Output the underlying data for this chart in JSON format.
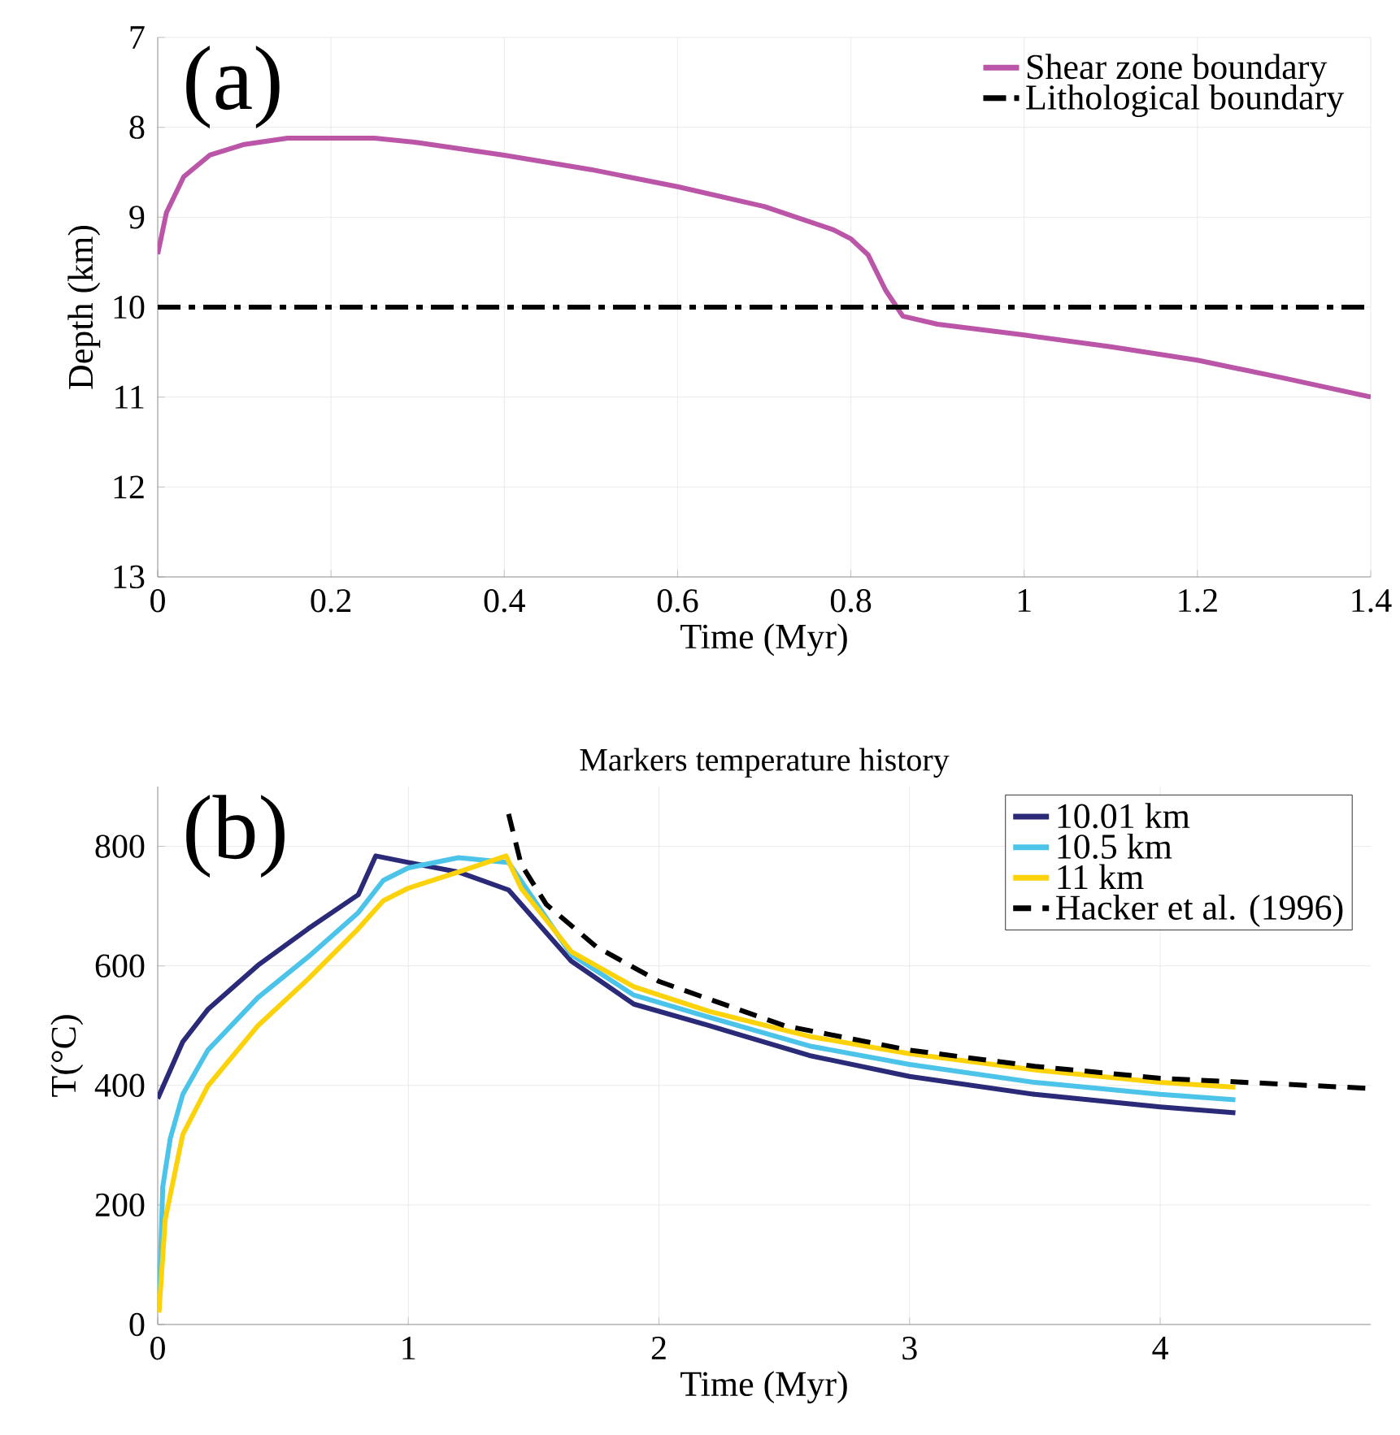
{
  "chart_data": [
    {
      "type": "line",
      "xlabel": "Time (Myr)",
      "ylabel": "Depth (km)",
      "annotations": [
        "(a)"
      ],
      "xlim": [
        0,
        1.4
      ],
      "ylim": [
        13,
        7
      ],
      "xticks": [
        0,
        0.2,
        0.4,
        0.6,
        0.8,
        1,
        1.2,
        1.4
      ],
      "yticks": [
        7,
        8,
        9,
        10,
        11,
        12,
        13
      ],
      "grid": true,
      "legend": "top right",
      "series": [
        {
          "name": "Shear zone boundary",
          "color": "#bb55a8",
          "line_style": "solid",
          "x": [
            0,
            0.01,
            0.03,
            0.06,
            0.1,
            0.15,
            0.25,
            0.3,
            0.4,
            0.5,
            0.6,
            0.7,
            0.78,
            0.8,
            0.82,
            0.84,
            0.86,
            0.9,
            1.0,
            1.1,
            1.2,
            1.3,
            1.4
          ],
          "values": [
            9.41,
            8.95,
            8.55,
            8.31,
            8.19,
            8.12,
            8.12,
            8.17,
            8.31,
            8.47,
            8.66,
            8.88,
            9.14,
            9.24,
            9.42,
            9.81,
            10.1,
            10.19,
            10.31,
            10.44,
            10.59,
            10.79,
            11.0
          ]
        },
        {
          "name": "Lithological boundary",
          "color": "#000000",
          "line_style": "dashdot",
          "x": [
            0,
            1.4
          ],
          "values": [
            10,
            10
          ]
        }
      ]
    },
    {
      "type": "line",
      "title": "Markers temperature history",
      "xlabel": "Time (Myr)",
      "ylabel": "T(°C)",
      "annotations": [
        "(b)"
      ],
      "xlim": [
        0,
        4.84
      ],
      "ylim": [
        0,
        900
      ],
      "xticks": [
        0,
        1,
        2,
        3,
        4
      ],
      "yticks": [
        0,
        200,
        400,
        600,
        800
      ],
      "grid": true,
      "legend": "top right",
      "series": [
        {
          "name": "10.01 km",
          "color": "#2b2a78",
          "line_style": "solid",
          "x": [
            0,
            0.1,
            0.2,
            0.4,
            0.6,
            0.8,
            0.87,
            1.0,
            1.2,
            1.4,
            1.65,
            1.9,
            2.2,
            2.6,
            3.0,
            3.5,
            4.0,
            4.3
          ],
          "values": [
            378,
            473,
            527,
            601,
            662,
            719,
            784,
            773,
            757,
            727,
            608,
            536,
            500,
            450,
            415,
            385,
            364,
            354
          ]
        },
        {
          "name": "10.5 km",
          "color": "#4cc4ea",
          "line_style": "solid",
          "x": [
            0.005,
            0.02,
            0.05,
            0.1,
            0.2,
            0.4,
            0.6,
            0.8,
            0.9,
            1.0,
            1.2,
            1.4,
            1.65,
            1.9,
            2.2,
            2.6,
            3.0,
            3.5,
            4.0,
            4.3
          ],
          "values": [
            27,
            230,
            311,
            385,
            459,
            547,
            615,
            689,
            743,
            764,
            781,
            773,
            619,
            551,
            514,
            466,
            435,
            405,
            385,
            376
          ]
        },
        {
          "name": "11 km",
          "color": "#fcd20a",
          "line_style": "solid",
          "x": [
            0.005,
            0.03,
            0.1,
            0.2,
            0.4,
            0.6,
            0.8,
            0.9,
            1.0,
            1.2,
            1.39,
            1.45,
            1.65,
            1.9,
            2.2,
            2.6,
            3.0,
            3.5,
            4.0,
            4.3
          ],
          "values": [
            20,
            176,
            318,
            399,
            500,
            578,
            662,
            709,
            730,
            757,
            784,
            730,
            624,
            565,
            524,
            482,
            453,
            426,
            405,
            397
          ]
        },
        {
          "name": "Hacker et al. (1996)",
          "color": "#000000",
          "line_style": "dashed",
          "x": [
            1.4,
            1.45,
            1.55,
            1.75,
            2.0,
            2.5,
            3.0,
            3.5,
            4.0,
            4.84
          ],
          "values": [
            854,
            770,
            703,
            632,
            574,
            500,
            459,
            432,
            412,
            395
          ]
        }
      ]
    }
  ]
}
